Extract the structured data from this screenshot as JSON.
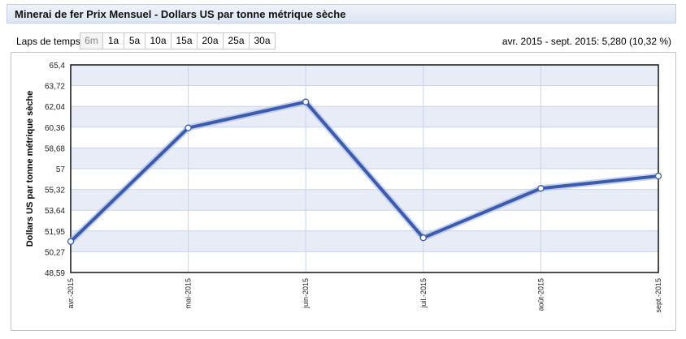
{
  "header": {
    "title": "Minerai de fer Prix Mensuel - Dollars US par tonne métrique sèche"
  },
  "controls": {
    "range_label": "Laps de temps",
    "ranges": [
      "6m",
      "1a",
      "5a",
      "10a",
      "15a",
      "20a",
      "25a",
      "30a"
    ],
    "active_range": "6m",
    "summary": "avr. 2015 - sept. 2015: 5,280 (10,32 %)"
  },
  "colors": {
    "line": "#3a5cb0",
    "band": "#e8ecf7",
    "grid": "#c9d4ea"
  },
  "chart_data": {
    "type": "line",
    "title": "",
    "xlabel": "",
    "ylabel": "Dollars US par tonne métrique sèche",
    "categories": [
      "avr.-2015",
      "mai-2015",
      "juin-2015",
      "juil.-2015",
      "août-2015",
      "sept.-2015"
    ],
    "values": [
      51.1,
      60.3,
      62.4,
      51.4,
      55.4,
      56.4
    ],
    "yticks": [
      "65,4",
      "63,72",
      "62,04",
      "60,36",
      "58,68",
      "57",
      "55,32",
      "53,64",
      "51,95",
      "50,27",
      "48,59"
    ],
    "ylim": [
      48.59,
      65.4
    ],
    "grid": true,
    "markers": true
  }
}
